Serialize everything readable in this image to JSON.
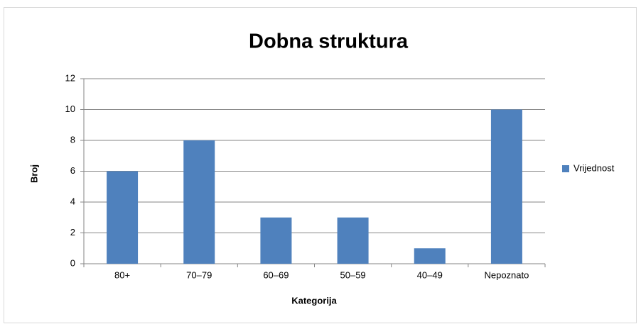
{
  "chart_data": {
    "type": "bar",
    "title": "Dobna struktura",
    "x_label": "Kategorija",
    "y_label": "Broj",
    "categories": [
      "80+",
      "70–79",
      "60–69",
      "50–59",
      "40–49",
      "Nepoznato"
    ],
    "series": [
      {
        "name": "Vrijednost",
        "color": "#4f81bd",
        "values": [
          6,
          8,
          3,
          3,
          1,
          10
        ]
      }
    ],
    "ylim": [
      0,
      12
    ],
    "yticks": [
      0,
      2,
      4,
      6,
      8,
      10,
      12
    ],
    "grid": true,
    "legend": "right"
  }
}
